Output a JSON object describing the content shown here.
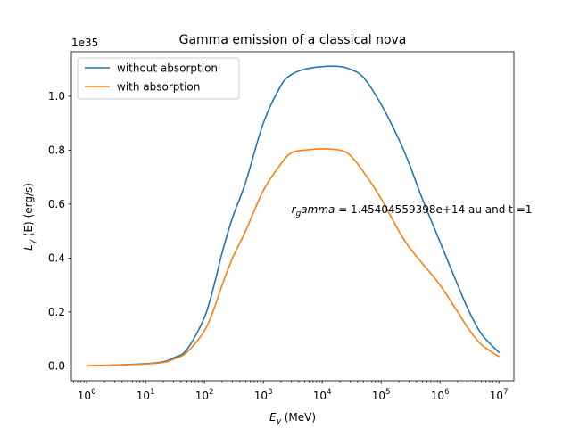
{
  "chart_data": {
    "type": "line",
    "title": "Gamma emission of a classical nova",
    "xlabel_main": "E",
    "xlabel_sub": "γ",
    "xlabel_unit": " (MeV)",
    "ylabel_main": "L",
    "ylabel_sub": "γ",
    "ylabel_unit": " (E) (erg/s)",
    "y_offset_label": "1e35",
    "x_scale": "log",
    "xlim": [
      0.55,
      18000000
    ],
    "ylim": [
      -0.055,
      1.165
    ],
    "x_ticks": [
      {
        "value": 1,
        "base": "10",
        "exp": "0"
      },
      {
        "value": 10,
        "base": "10",
        "exp": "1"
      },
      {
        "value": 100,
        "base": "10",
        "exp": "2"
      },
      {
        "value": 1000,
        "base": "10",
        "exp": "3"
      },
      {
        "value": 10000,
        "base": "10",
        "exp": "4"
      },
      {
        "value": 100000,
        "base": "10",
        "exp": "5"
      },
      {
        "value": 1000000,
        "base": "10",
        "exp": "6"
      },
      {
        "value": 10000000,
        "base": "10",
        "exp": "7"
      }
    ],
    "y_ticks": [
      {
        "value": 0.0,
        "label": "0.0"
      },
      {
        "value": 0.2,
        "label": "0.2"
      },
      {
        "value": 0.4,
        "label": "0.4"
      },
      {
        "value": 0.6,
        "label": "0.6"
      },
      {
        "value": 0.8,
        "label": "0.8"
      },
      {
        "value": 1.0,
        "label": "1.0"
      }
    ],
    "annotation": {
      "prefix": "r",
      "sub": "g",
      "italic": "amma",
      "rest": " = 1.45404559398e+14 au and t =1",
      "x": 3000,
      "y": 0.55
    },
    "legend_position": "top-left",
    "grid": false,
    "series": [
      {
        "name": "without absorption",
        "color": "#1f77b4",
        "x": [
          1,
          3,
          10,
          20,
          30,
          50,
          100,
          150,
          200,
          300,
          500,
          1000,
          2000,
          3000,
          5000,
          10000,
          20000,
          30000,
          50000,
          100000,
          200000,
          300000,
          500000,
          1000000,
          2000000,
          3000000,
          5000000,
          10000000
        ],
        "y": [
          0.0,
          0.003,
          0.008,
          0.015,
          0.03,
          0.06,
          0.18,
          0.31,
          0.42,
          0.55,
          0.68,
          0.9,
          1.04,
          1.08,
          1.1,
          1.11,
          1.11,
          1.1,
          1.07,
          0.97,
          0.84,
          0.75,
          0.62,
          0.46,
          0.3,
          0.21,
          0.12,
          0.05
        ]
      },
      {
        "name": "with absorption",
        "color": "#ff7f0e",
        "x": [
          1,
          3,
          10,
          20,
          30,
          50,
          100,
          150,
          200,
          300,
          500,
          1000,
          2000,
          3000,
          5000,
          10000,
          20000,
          30000,
          50000,
          100000,
          200000,
          300000,
          500000,
          1000000,
          2000000,
          3000000,
          5000000,
          10000000
        ],
        "y": [
          0.0,
          0.003,
          0.007,
          0.013,
          0.025,
          0.05,
          0.13,
          0.22,
          0.3,
          0.4,
          0.5,
          0.65,
          0.75,
          0.79,
          0.8,
          0.805,
          0.8,
          0.78,
          0.72,
          0.62,
          0.5,
          0.44,
          0.38,
          0.3,
          0.2,
          0.14,
          0.08,
          0.035
        ]
      }
    ]
  }
}
